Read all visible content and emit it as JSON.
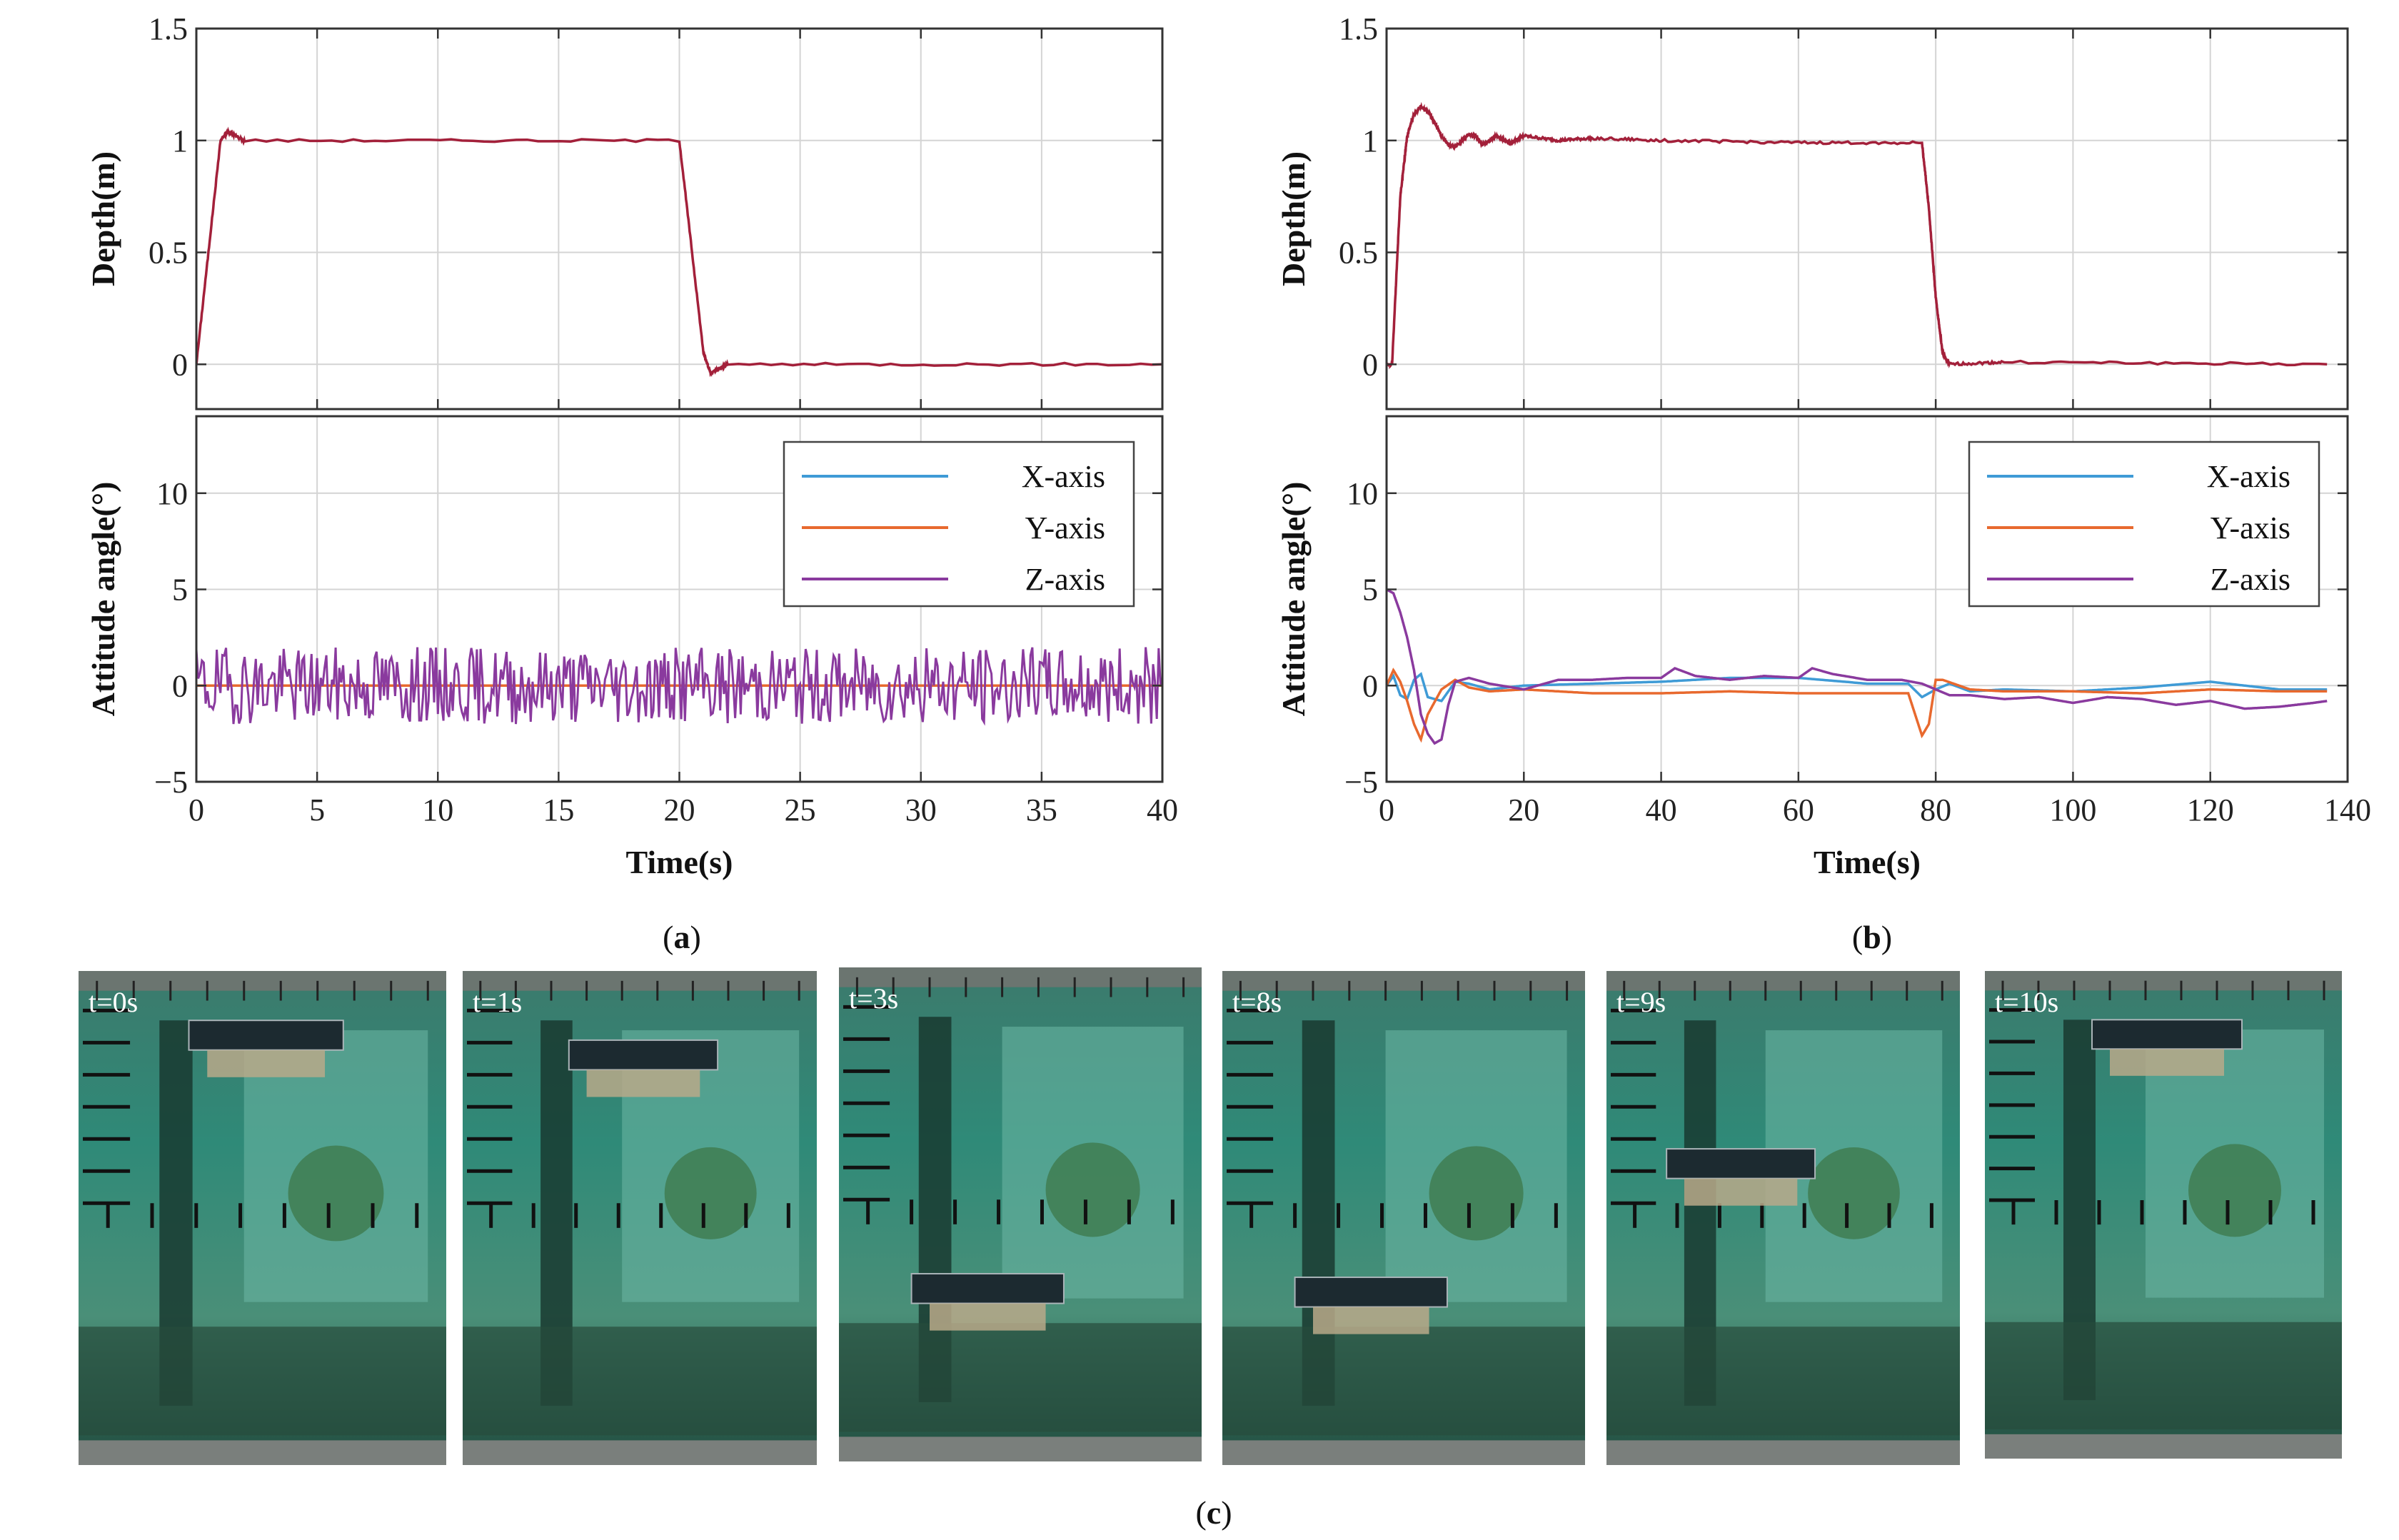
{
  "colors": {
    "depth": "#a3203a",
    "x_axis": "#3f9bd6",
    "y_axis": "#e8692e",
    "z_axis": "#8a3a9e",
    "grid": "#d4d4d4",
    "axis": "#333333"
  },
  "chart_data": [
    {
      "id": "a",
      "panel_label": "a",
      "charts": [
        {
          "type": "line",
          "ylabel": "Depth(m)",
          "xlim": [
            0,
            40
          ],
          "ylim": [
            -0.2,
            1.5
          ],
          "yticks": [
            "1.5",
            "1",
            "0.5",
            "0"
          ],
          "ytick_values": [
            1.5,
            1,
            0.5,
            0
          ],
          "series": [
            {
              "name": "Depth",
              "x": [
                0,
                1,
                1.3,
                2,
                20,
                21,
                21.3,
                22,
                40
              ],
              "y": [
                0,
                1.0,
                1.04,
                1.0,
                1.0,
                0.05,
                -0.04,
                0,
                0
              ]
            }
          ]
        },
        {
          "type": "line",
          "ylabel": "Attitude angle(°)",
          "xlabel": "Time(s)",
          "xlim": [
            0,
            40
          ],
          "ylim": [
            -5,
            14
          ],
          "xticks": [
            "0",
            "5",
            "10",
            "15",
            "20",
            "25",
            "30",
            "35",
            "40"
          ],
          "xtick_values": [
            0,
            5,
            10,
            15,
            20,
            25,
            30,
            35,
            40
          ],
          "yticks": [
            "10",
            "5",
            "0",
            "−5"
          ],
          "ytick_values": [
            10,
            5,
            0,
            -5
          ],
          "legend": [
            "X-axis",
            "Y-axis",
            "Z-axis"
          ],
          "legend_position": "top-right",
          "series": [
            {
              "name": "X-axis",
              "x": [
                0,
                40
              ],
              "y": [
                0,
                0
              ]
            },
            {
              "name": "Y-axis",
              "x": [
                0,
                40
              ],
              "y": [
                0,
                0
              ]
            },
            {
              "name": "Z-axis",
              "noise": 2.0,
              "x": [
                0,
                40
              ],
              "y": [
                0,
                0
              ]
            }
          ]
        }
      ]
    },
    {
      "id": "b",
      "panel_label": "b",
      "charts": [
        {
          "type": "line",
          "ylabel": "Depth(m)",
          "xlim": [
            0,
            140
          ],
          "ylim": [
            -0.2,
            1.5
          ],
          "yticks": [
            "1.5",
            "1",
            "0.5",
            "0"
          ],
          "ytick_values": [
            1.5,
            1,
            0.5,
            0
          ],
          "series": [
            {
              "name": "Depth",
              "x": [
                0,
                0.8,
                2,
                3,
                4,
                5,
                6,
                7,
                8,
                9,
                10,
                11,
                12,
                13,
                14,
                16,
                18,
                20,
                25,
                30,
                40,
                60,
                78,
                79,
                80,
                81,
                82,
                90,
                137
              ],
              "y": [
                0,
                0.0,
                0.75,
                1.02,
                1.12,
                1.15,
                1.13,
                1.08,
                1.02,
                0.98,
                0.97,
                1.0,
                1.03,
                1.02,
                0.98,
                1.02,
                0.99,
                1.02,
                1.0,
                1.01,
                1.0,
                0.99,
                0.99,
                0.7,
                0.3,
                0.05,
                0,
                0.01,
                0
              ]
            }
          ]
        },
        {
          "type": "line",
          "ylabel": "Attitude angle(°)",
          "xlabel": "Time(s)",
          "xlim": [
            0,
            140
          ],
          "ylim": [
            -5,
            14
          ],
          "xticks": [
            "0",
            "20",
            "40",
            "60",
            "80",
            "100",
            "120",
            "140"
          ],
          "xtick_values": [
            0,
            20,
            40,
            60,
            80,
            100,
            120,
            140
          ],
          "yticks": [
            "10",
            "5",
            "0",
            "−5"
          ],
          "ytick_values": [
            10,
            5,
            0,
            -5
          ],
          "legend": [
            "X-axis",
            "Y-axis",
            "Z-axis"
          ],
          "legend_position": "top-right",
          "series": [
            {
              "name": "X-axis",
              "x": [
                0,
                1,
                2,
                3,
                4,
                5,
                6,
                8,
                10,
                12,
                15,
                20,
                30,
                40,
                50,
                60,
                70,
                76,
                78,
                80,
                82,
                85,
                90,
                100,
                110,
                120,
                130,
                137
              ],
              "y": [
                0,
                0.5,
                -0.5,
                -0.7,
                0.3,
                0.6,
                -0.6,
                -0.8,
                0.2,
                0.1,
                -0.2,
                0,
                0.1,
                0.2,
                0.4,
                0.4,
                0.1,
                0.1,
                -0.6,
                -0.2,
                0.1,
                -0.3,
                -0.2,
                -0.3,
                -0.1,
                0.2,
                -0.2,
                -0.2
              ]
            },
            {
              "name": "Y-axis",
              "x": [
                0,
                1,
                2,
                3,
                4,
                5,
                6,
                8,
                10,
                12,
                15,
                20,
                30,
                40,
                50,
                60,
                70,
                76,
                77,
                78,
                79,
                80,
                81,
                85,
                90,
                100,
                110,
                120,
                130,
                137
              ],
              "y": [
                0,
                0.8,
                0.2,
                -0.8,
                -2.0,
                -2.8,
                -1.5,
                -0.2,
                0.3,
                -0.1,
                -0.3,
                -0.2,
                -0.4,
                -0.4,
                -0.3,
                -0.4,
                -0.4,
                -0.4,
                -1.5,
                -2.6,
                -2.0,
                0.3,
                0.3,
                -0.2,
                -0.3,
                -0.3,
                -0.4,
                -0.2,
                -0.3,
                -0.3
              ]
            },
            {
              "name": "Z-axis",
              "x": [
                0,
                1,
                2,
                3,
                4,
                5,
                6,
                7,
                8,
                9,
                10,
                12,
                15,
                20,
                25,
                30,
                35,
                40,
                42,
                45,
                50,
                55,
                60,
                62,
                65,
                70,
                75,
                78,
                80,
                82,
                85,
                90,
                95,
                100,
                105,
                110,
                115,
                120,
                125,
                130,
                135,
                137
              ],
              "y": [
                5,
                4.8,
                3.8,
                2.5,
                0.8,
                -1.5,
                -2.5,
                -3.0,
                -2.8,
                -1.0,
                0.2,
                0.4,
                0.1,
                -0.2,
                0.3,
                0.3,
                0.4,
                0.4,
                0.9,
                0.5,
                0.3,
                0.5,
                0.4,
                0.9,
                0.6,
                0.3,
                0.3,
                0.1,
                -0.2,
                -0.5,
                -0.5,
                -0.7,
                -0.6,
                -0.9,
                -0.6,
                -0.7,
                -1.0,
                -0.8,
                -1.2,
                -1.1,
                -0.9,
                -0.8
              ]
            }
          ]
        }
      ]
    }
  ],
  "figure_c": {
    "panel_label": "c",
    "frames": [
      {
        "time": "t=0s",
        "robot": "top"
      },
      {
        "time": "t=1s",
        "robot": "top-tilted"
      },
      {
        "time": "t=3s",
        "robot": "bottom"
      },
      {
        "time": "t=8s",
        "robot": "bottom"
      },
      {
        "time": "t=9s",
        "robot": "middle"
      },
      {
        "time": "t=10s",
        "robot": "top"
      }
    ]
  }
}
